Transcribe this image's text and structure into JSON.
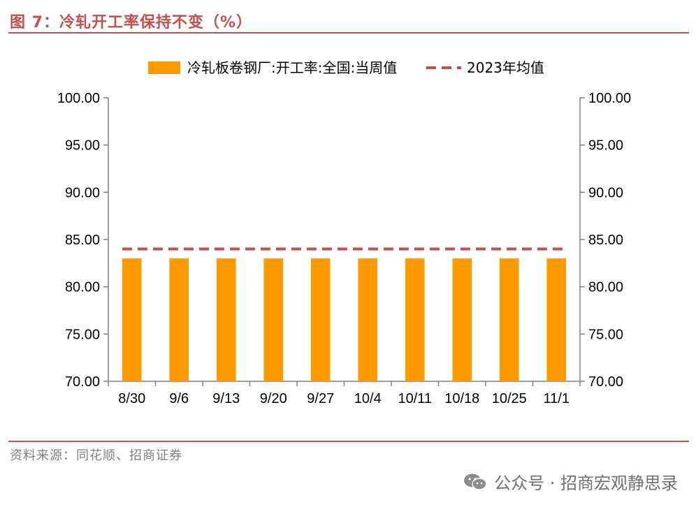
{
  "figure": {
    "title": "图 7：冷轧开工率保持不变（%）",
    "source": "资料来源：同花顺、招商证券",
    "watermark": "公众号 · 招商宏观静思录"
  },
  "colors": {
    "bar": "#ff9900",
    "avg_line": "#c0504d",
    "accent": "#c0504d"
  },
  "chart_data": {
    "type": "bar",
    "categories": [
      "8/30",
      "9/6",
      "9/13",
      "9/20",
      "9/27",
      "10/4",
      "10/11",
      "10/18",
      "10/25",
      "11/1"
    ],
    "series": [
      {
        "name": "冷轧板卷钢厂:开工率:全国:当周值",
        "type": "bar",
        "values": [
          83,
          83,
          83,
          83,
          83,
          83,
          83,
          83,
          83,
          83
        ]
      },
      {
        "name": "2023年均值",
        "type": "line",
        "style": "dashed",
        "values": [
          84,
          84,
          84,
          84,
          84,
          84,
          84,
          84,
          84,
          84
        ]
      }
    ],
    "ylim": [
      70,
      100
    ],
    "yticks": [
      "70.00",
      "75.00",
      "80.00",
      "85.00",
      "90.00",
      "95.00",
      "100.00"
    ],
    "secondary_yticks": [
      "70.00",
      "75.00",
      "80.00",
      "85.00",
      "90.00",
      "95.00",
      "100.00"
    ],
    "legend_position": "top",
    "grid": false
  }
}
